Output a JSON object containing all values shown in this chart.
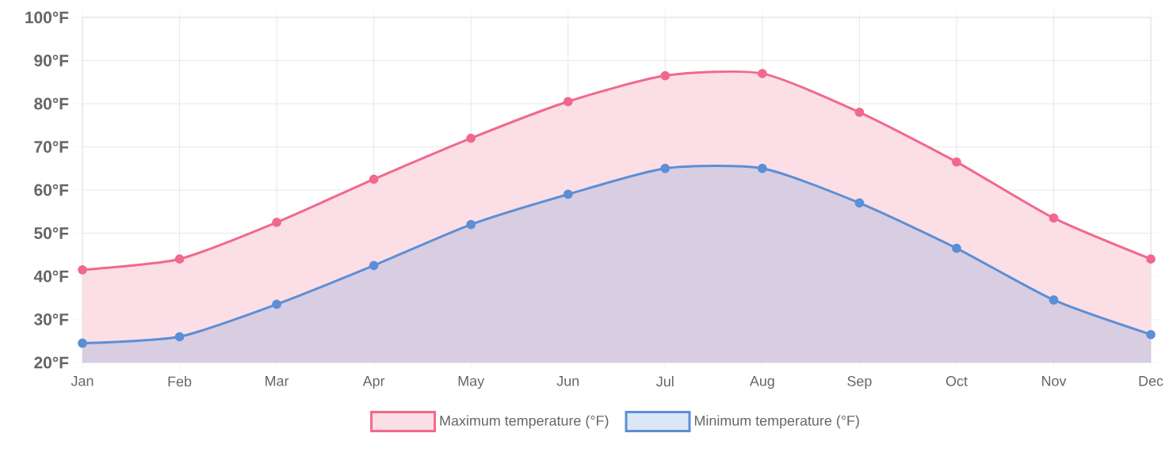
{
  "chart_data": {
    "type": "area",
    "categories": [
      "Jan",
      "Feb",
      "Mar",
      "Apr",
      "May",
      "Jun",
      "Jul",
      "Aug",
      "Sep",
      "Oct",
      "Nov",
      "Dec"
    ],
    "series": [
      {
        "name": "Maximum temperature (°F)",
        "color": "#f0698c",
        "values": [
          41.5,
          44,
          52.5,
          62.5,
          72,
          80.5,
          86.5,
          87,
          78,
          66.5,
          53.5,
          44
        ]
      },
      {
        "name": "Minimum temperature (°F)",
        "color": "#5b8fd6",
        "values": [
          24.5,
          26,
          33.5,
          42.5,
          52,
          59,
          65,
          65,
          57,
          46.5,
          34.5,
          26.5
        ]
      }
    ],
    "ylim": [
      20,
      100
    ],
    "yticks": [
      {
        "value": 20,
        "label": "20°F"
      },
      {
        "value": 30,
        "label": "30°F"
      },
      {
        "value": 40,
        "label": "40°F"
      },
      {
        "value": 50,
        "label": "50°F"
      },
      {
        "value": 60,
        "label": "60°F"
      },
      {
        "value": 70,
        "label": "70°F"
      },
      {
        "value": 80,
        "label": "80°F"
      },
      {
        "value": 90,
        "label": "90°F"
      },
      {
        "value": 100,
        "label": "100°F"
      }
    ],
    "grid": true,
    "legend": "bottom",
    "marker": "circle"
  }
}
